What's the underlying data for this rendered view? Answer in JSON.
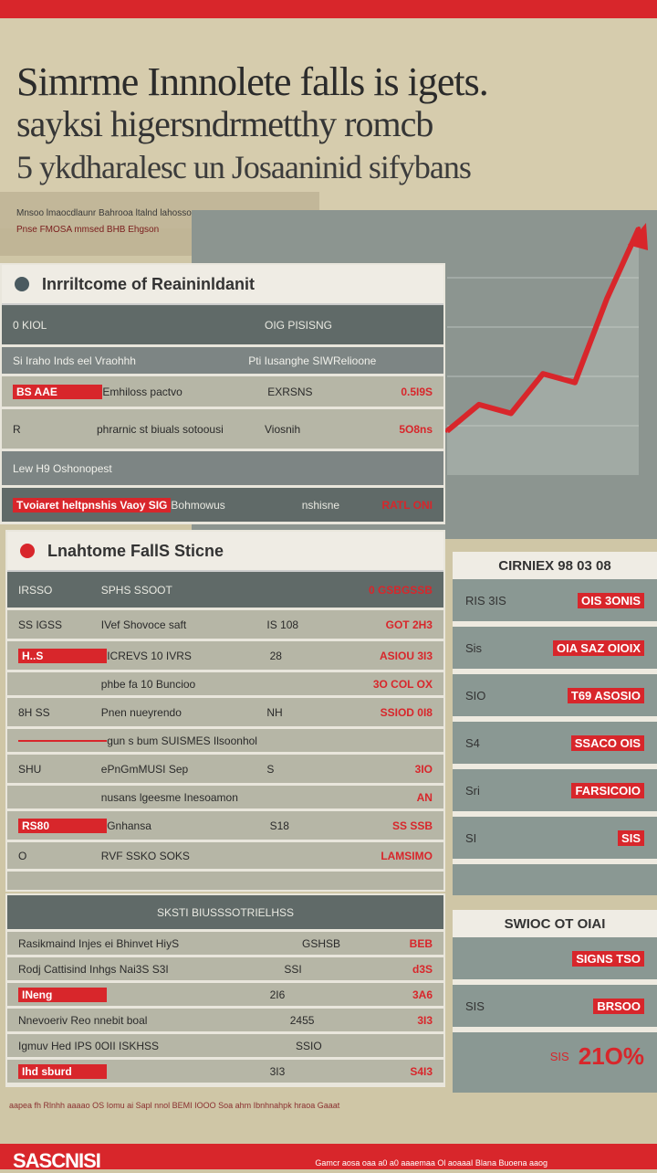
{
  "header": {
    "line1": "Simrme Innnolete falls is igets.",
    "line2": "sayksi higersndrmetthy romcb",
    "line3": "5 ykdharalesc un Josaaninid sifybans",
    "sub1": "Mnsoo lmaocdlaunr Bahrooa ltalnd lahosso",
    "sub2": "Pnse FMOSA mmsed BHB Ehgson"
  },
  "colors": {
    "accent": "#d8262b",
    "panel": "#606a68",
    "paper": "#efece4"
  },
  "card1": {
    "title": "Inrriltcome of Reaininldanit",
    "rows": [
      {
        "a": "0 KIOL",
        "b": "",
        "c": "OIG PISISNG",
        "d": ""
      },
      {
        "a": "Si Iraho Inds eel Vraohhh",
        "b": "",
        "c": "Pti Iusanghe SIWRelioone",
        "d": ""
      },
      {
        "a": "BS AAE",
        "b": "Emhiloss pactvo",
        "c": "EXRSNS",
        "d": "0.5I9S"
      },
      {
        "a": "R",
        "b": "phrarnic st biuals sotoousi",
        "c": "Viosnih",
        "d": "5O8ns"
      },
      {
        "a": "Lew H9 Oshonopest",
        "b": "",
        "c": "",
        "d": ""
      },
      {
        "a": "Tvoiaret heltpnshis Vaoy SIG",
        "b": "Bohmowus",
        "c": "nshisne",
        "d": "RATL ONI"
      }
    ]
  },
  "card2": {
    "title": "Lnahtome FallS Sticne",
    "rows": [
      {
        "a": "IRSSO",
        "b": "SPHS SSOOT",
        "c": "",
        "d": "0 GSBGSSB"
      },
      {
        "a": "SS IGSS",
        "b": "IVef Shovoce saft",
        "c": "IS 108",
        "d": "GOT 2H3"
      },
      {
        "a": "H..S",
        "b": "ICREVS 10 IVRS",
        "c": "28",
        "d": "ASIOU 3I3"
      },
      {
        "a": "",
        "b": "phbe fa 10 Buncioo",
        "c": "",
        "d": "3O COL OX"
      },
      {
        "a": "8H SS",
        "b": "Pnen nueyrendo",
        "c": "NH",
        "d": "SSIOD 0I8"
      },
      {
        "a": "",
        "b": "gun s bum SUISMES Ilsoonhol",
        "c": "",
        "d": ""
      },
      {
        "a": "SHU",
        "b": "ePnGmMUSI Sep",
        "c": "S",
        "d": "3IO"
      },
      {
        "a": "",
        "b": "nusans lgeesme Inesoamon",
        "c": "",
        "d": "AN"
      },
      {
        "a": "RS80",
        "b": "Gnhansa",
        "c": "S18",
        "d": "SS SSB"
      },
      {
        "a": "O",
        "b": "RVF SSKO SOKS",
        "c": "",
        "d": "LAMSIMO"
      }
    ]
  },
  "card3": {
    "title": "SKSTI BIUSSSOTRIELHSS",
    "rows": [
      {
        "a": "Rasikmaind Injes ei Bhinvet Hiy",
        "b": "S",
        "c": "GSHSB",
        "d": "BEB"
      },
      {
        "a": "Rodj Cattisind Inhgs Nai",
        "b": "3S S3I",
        "c": "SSI",
        "d": "d3S"
      },
      {
        "a": "INeng",
        "b": "",
        "c": "2I6",
        "d": "3A6"
      },
      {
        "a": "Nnevoeriv Reo nnebit boal",
        "b": "",
        "c": "2455",
        "d": "3I3"
      },
      {
        "a": "Igmuv Hed IPS 0OII ISKHSS",
        "b": "",
        "c": "SSIO",
        "d": ""
      },
      {
        "a": "Ihd sburd",
        "b": "",
        "c": "3I3",
        "d": "S4I3"
      }
    ]
  },
  "side1": {
    "title": "CIRNIEX 98 03 08",
    "rows": [
      {
        "a": "RIS 3IS",
        "b": "OIS 3ONIS"
      },
      {
        "a": "Sis",
        "b": "OIA SAZ OIOIX"
      },
      {
        "a": "SIO",
        "b": "T69 ASOSIO"
      },
      {
        "a": "S4",
        "b": "SSACO OIS"
      },
      {
        "a": "Sri",
        "b": "FARSICOIO"
      },
      {
        "a": "SI",
        "b": "SIS"
      }
    ]
  },
  "side2": {
    "title": "SWIOC OT OIAI",
    "rows": [
      {
        "a": "",
        "b": "SIGNS TSO"
      },
      {
        "a": "SIS",
        "b": "BRSOO"
      }
    ],
    "big_value": "21O%",
    "big_prefix": "SIS"
  },
  "chart_data": {
    "type": "line",
    "x": [
      0,
      1,
      2,
      3,
      4,
      5,
      6
    ],
    "series": [
      {
        "values": [
          1.0,
          1.6,
          1.4,
          2.3,
          2.1,
          4.0,
          5.6
        ]
      }
    ]
  },
  "footer": {
    "logo": "SASCNISI",
    "text": "Gamcr aosa oaa a0 a0 aaaemaa Ol aoaaaI Blana Buoena aaog",
    "fine_print": "aapea fh Rlnhh aaaao OS Iomu ai Sapl nnol BEMI IOOO Soa ahm Ibnhnahpk hraoa Gaaat"
  }
}
